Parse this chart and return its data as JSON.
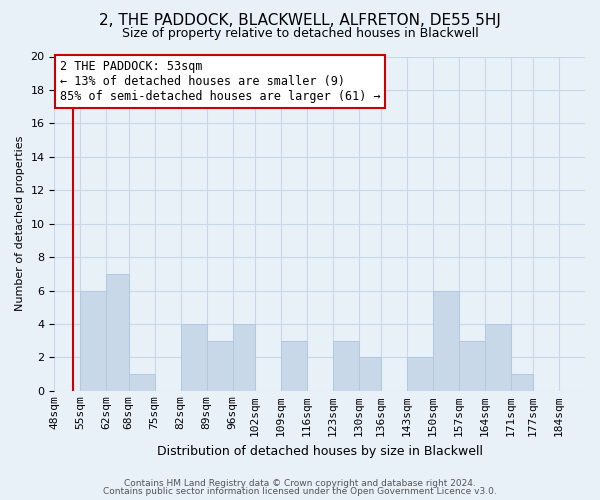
{
  "title": "2, THE PADDOCK, BLACKWELL, ALFRETON, DE55 5HJ",
  "subtitle": "Size of property relative to detached houses in Blackwell",
  "xlabel": "Distribution of detached houses by size in Blackwell",
  "ylabel": "Number of detached properties",
  "footer_line1": "Contains HM Land Registry data © Crown copyright and database right 2024.",
  "footer_line2": "Contains public sector information licensed under the Open Government Licence v3.0.",
  "bin_labels": [
    "48sqm",
    "55sqm",
    "62sqm",
    "68sqm",
    "75sqm",
    "82sqm",
    "89sqm",
    "96sqm",
    "102sqm",
    "109sqm",
    "116sqm",
    "123sqm",
    "130sqm",
    "136sqm",
    "143sqm",
    "150sqm",
    "157sqm",
    "164sqm",
    "171sqm",
    "177sqm",
    "184sqm"
  ],
  "bin_edges": [
    48,
    55,
    62,
    68,
    75,
    82,
    89,
    96,
    102,
    109,
    116,
    123,
    130,
    136,
    143,
    150,
    157,
    164,
    171,
    177,
    184
  ],
  "bar_heights": [
    0,
    6,
    7,
    1,
    0,
    4,
    3,
    4,
    0,
    3,
    0,
    3,
    2,
    0,
    2,
    6,
    3,
    4,
    1,
    0,
    0
  ],
  "bar_color": "#c8d8e8",
  "bar_edge_color": "#b0c8e0",
  "grid_color": "#c8d8e8",
  "background_color": "#e8f0f8",
  "plot_bg_color": "#e8f0f8",
  "red_line_x": 53,
  "annotation_line1": "2 THE PADDOCK: 53sqm",
  "annotation_line2": "← 13% of detached houses are smaller (9)",
  "annotation_line3": "85% of semi-detached houses are larger (61) →",
  "annotation_box_color": "#ffffff",
  "annotation_border_color": "#cc0000",
  "ylim": [
    0,
    20
  ],
  "yticks": [
    0,
    2,
    4,
    6,
    8,
    10,
    12,
    14,
    16,
    18,
    20
  ],
  "title_fontsize": 11,
  "subtitle_fontsize": 9,
  "ylabel_fontsize": 8,
  "xlabel_fontsize": 9,
  "tick_fontsize": 8,
  "annot_fontsize": 8.5,
  "footer_fontsize": 6.5
}
